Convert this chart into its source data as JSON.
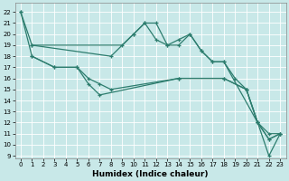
{
  "xlabel": "Humidex (Indice chaleur)",
  "background_color": "#c8e8e8",
  "grid_color": "#ffffff",
  "line_color": "#2d7d6e",
  "xlim": [
    -0.5,
    23.5
  ],
  "ylim": [
    8.8,
    22.8
  ],
  "yticks": [
    9,
    10,
    11,
    12,
    13,
    14,
    15,
    16,
    17,
    18,
    19,
    20,
    21,
    22
  ],
  "xticks": [
    0,
    1,
    2,
    3,
    4,
    5,
    6,
    7,
    8,
    9,
    10,
    11,
    12,
    13,
    14,
    15,
    16,
    17,
    18,
    19,
    20,
    21,
    22,
    23
  ],
  "lines": [
    {
      "x": [
        0,
        1,
        8,
        10,
        11,
        12,
        13,
        14,
        15,
        16,
        17,
        18,
        21,
        22,
        23
      ],
      "y": [
        22,
        19,
        18,
        20,
        21,
        21,
        19,
        19,
        20,
        18.5,
        17.5,
        17.5,
        12,
        10.5,
        11
      ]
    },
    {
      "x": [
        1,
        9,
        10,
        11,
        12,
        13,
        14,
        15,
        16,
        17,
        18,
        19,
        20,
        21,
        22,
        23
      ],
      "y": [
        19,
        19,
        20,
        21,
        19.5,
        19,
        19.5,
        20,
        18.5,
        17.5,
        17.5,
        16,
        15,
        12,
        10.5,
        11
      ]
    },
    {
      "x": [
        1,
        3,
        5,
        6,
        7,
        8,
        14,
        18,
        20,
        21,
        22,
        23
      ],
      "y": [
        18,
        17,
        17,
        16,
        15.5,
        15,
        16,
        16,
        15,
        12,
        11,
        11
      ]
    },
    {
      "x": [
        0,
        1,
        3,
        5,
        6,
        7,
        14,
        18,
        20,
        21,
        22,
        23
      ],
      "y": [
        22,
        18,
        17,
        17,
        15.5,
        14.5,
        16,
        16,
        15,
        12,
        9,
        11
      ]
    }
  ]
}
